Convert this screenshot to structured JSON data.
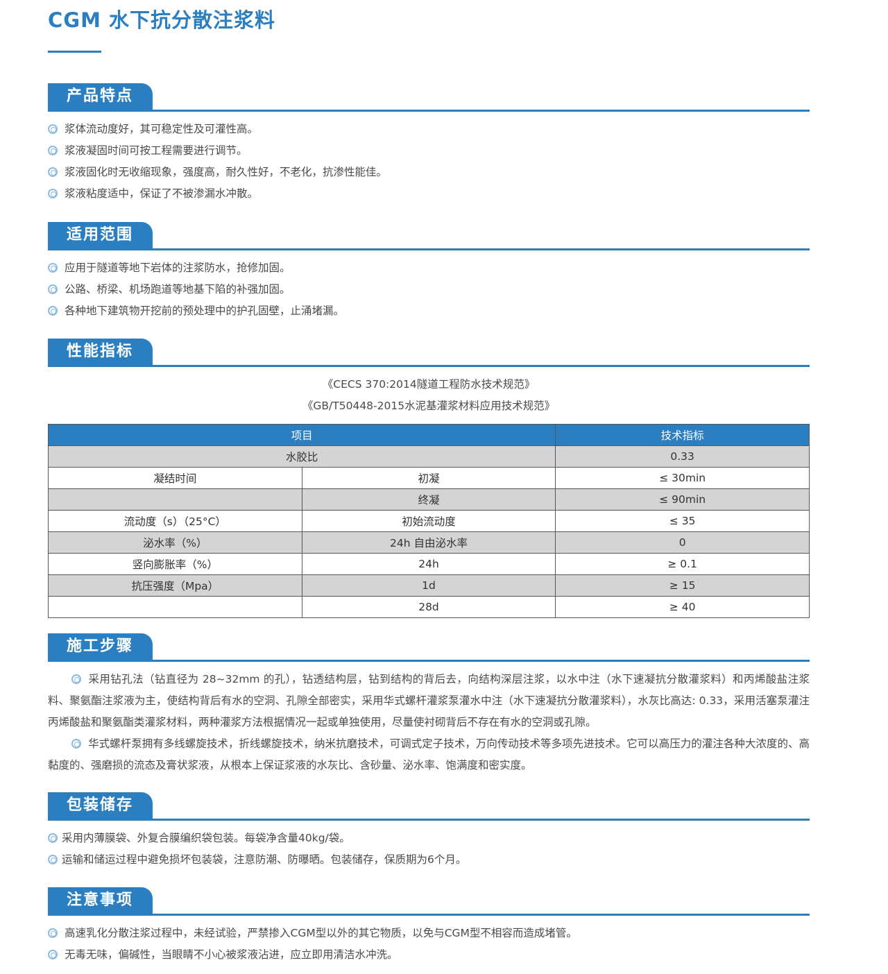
{
  "title": "CGM 水下抗分散注浆料",
  "sections": {
    "features": {
      "heading": "产品特点",
      "items": [
        "浆体流动度好，其可稳定性及可灌性高。",
        "浆液凝固时间可按工程需要进行调节。",
        "浆液固化时无收缩现象，强度高，耐久性好，不老化，抗渗性能佳。",
        "浆液粘度适中，保证了不被渗漏水冲散。"
      ]
    },
    "scope": {
      "heading": "适用范围",
      "items": [
        "应用于隧道等地下岩体的注浆防水，抢修加固。",
        "公路、桥梁、机场跑道等地基下陷的补强加固。",
        "各种地下建筑物开挖前的预处理中的护孔固壁，止涌堵漏。"
      ]
    },
    "performance": {
      "heading": "性能指标",
      "refs": [
        "《CECS 370:2014隧道工程防水技术规范》",
        "《GB/T50448-2015水泥基灌浆材料应用技术规范》"
      ],
      "table": {
        "headers": [
          "项目",
          "技术指标"
        ],
        "rows": [
          [
            "水胶比",
            "",
            "0.33"
          ],
          [
            "凝结时间",
            "初凝",
            "≤ 30min"
          ],
          [
            "",
            "终凝",
            "≤ 90min"
          ],
          [
            "流动度（s）（25°C）",
            "初始流动度",
            "≤ 35"
          ],
          [
            "泌水率（%）",
            "24h 自由泌水率",
            "0"
          ],
          [
            "竖向膨胀率（%）",
            "24h",
            "≥ 0.1"
          ],
          [
            "抗压强度（Mpa）",
            "1d",
            "≥ 15"
          ],
          [
            "",
            "28d",
            "≥ 40"
          ]
        ]
      }
    },
    "steps": {
      "heading": "施工步骤",
      "paragraphs": [
        "采用钻孔法（钻直径为 28~32mm 的孔），钻透结构层，钻到结构的背后去，向结构深层注浆，以水中注（水下速凝抗分散灌浆料）和丙烯酸盐注浆料、聚氨酯注浆液为主，使结构背后有水的空洞、孔隙全部密实，采用华式螺杆灌浆泵灌水中注（水下速凝抗分散灌浆料），水灰比高达: 0.33，采用活塞泵灌注丙烯酸盐和聚氨酯类灌浆材料，两种灌浆方法根据情况一起或单独使用，尽量使衬砌背后不存在有水的空洞或孔隙。",
        "华式螺杆泵拥有多线螺旋技术，折线螺旋技术，纳米抗磨技术，可调式定子技术，万向传动技术等多项先进技术。它可以高压力的灌注各种大浓度的、高黏度的、强磨损的流态及膏状浆液，从根本上保证浆液的水灰比、含砂量、泌水率、饱满度和密实度。"
      ]
    },
    "packaging": {
      "heading": "包装储存",
      "items": [
        "采用内薄膜袋、外复合膜编织袋包装。每袋净含量40kg/袋。",
        "运输和储运过程中避免损坏包装袋，注意防潮、防曝晒。包装储存，保质期为6个月。"
      ]
    },
    "notes": {
      "heading": "注意事项",
      "items": [
        "高速乳化分散注浆过程中，未经试验，严禁掺入CGM型以外的其它物质，以免与CGM型不相容而造成堵管。",
        "无毒无味，偏碱性，当眼睛不小心被浆液沾进，应立即用清洁水冲洗。"
      ]
    }
  },
  "colors": {
    "accent": "#2b7fc1",
    "row_gray": "#d4d4d4"
  },
  "icons": {
    "bullet": "double-circle-icon"
  }
}
